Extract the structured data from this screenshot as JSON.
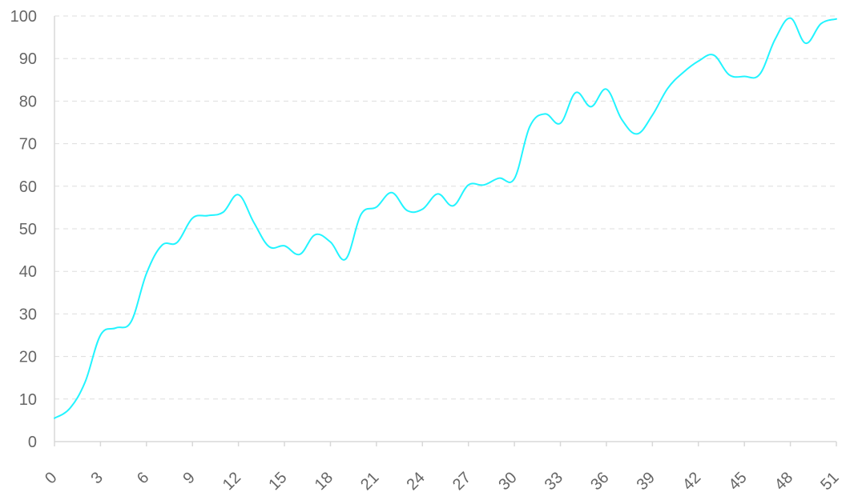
{
  "chart_data": {
    "type": "line",
    "title": "",
    "xlabel": "",
    "ylabel": "",
    "x": [
      0,
      1,
      2,
      3,
      4,
      5,
      6,
      7,
      8,
      9,
      10,
      11,
      12,
      13,
      14,
      15,
      16,
      17,
      18,
      19,
      20,
      21,
      22,
      23,
      24,
      25,
      26,
      27,
      28,
      29,
      30,
      31,
      32,
      33,
      34,
      35,
      36,
      37,
      38,
      39,
      40,
      41,
      42,
      43,
      44,
      45,
      46,
      47,
      48,
      49,
      50,
      51
    ],
    "series": [
      {
        "name": "",
        "color": "#22f4ff",
        "values": [
          5.5,
          7.8,
          14,
          25,
          26.7,
          28.2,
          39.5,
          46.1,
          46.8,
          52.5,
          53.1,
          53.9,
          58,
          51.5,
          45.8,
          46,
          44,
          48.6,
          46.9,
          42.9,
          53.4,
          55.1,
          58.5,
          54.3,
          54.6,
          58.2,
          55.4,
          60.3,
          60.3,
          61.9,
          61.8,
          74,
          77,
          74.8,
          82,
          78.7,
          82.8,
          75.7,
          72.3,
          76.7,
          83,
          86.7,
          89.4,
          90.8,
          86.2,
          85.8,
          86.3,
          94.5,
          99.5,
          93.6,
          98.2,
          99.3
        ]
      }
    ],
    "xlim": [
      0,
      51
    ],
    "ylim": [
      0,
      100
    ],
    "x_ticks": [
      "0",
      "3",
      "6",
      "9",
      "12",
      "15",
      "18",
      "21",
      "24",
      "27",
      "30",
      "33",
      "36",
      "39",
      "42",
      "45",
      "48",
      "51"
    ],
    "y_ticks": [
      "0",
      "10",
      "20",
      "30",
      "40",
      "50",
      "60",
      "70",
      "80",
      "90",
      "100"
    ],
    "grid": "horizontal dashed",
    "legend": "none"
  }
}
